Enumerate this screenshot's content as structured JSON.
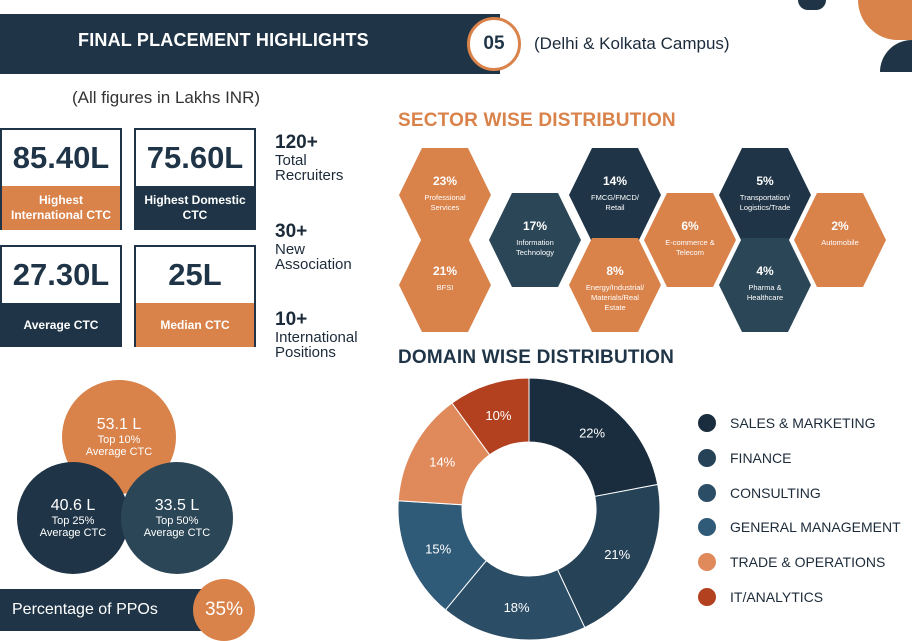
{
  "header": {
    "title": "FINAL PLACEMENT HIGHLIGHTS",
    "number": "05",
    "campus": "(Delhi & Kolkata Campus)"
  },
  "figures_note": "(All figures in Lakhs INR)",
  "stats": [
    {
      "value": "85.40L",
      "label": "Highest International CTC"
    },
    {
      "value": "75.60L",
      "label": "Highest Domestic CTC"
    },
    {
      "value": "27.30L",
      "label": "Average CTC"
    },
    {
      "value": "25L",
      "label": "Median CTC"
    }
  ],
  "side_stats": [
    {
      "value": "120+",
      "line1": "Total",
      "line2": "Recruiters"
    },
    {
      "value": "30+",
      "line1": "New",
      "line2": "Association"
    },
    {
      "value": "10+",
      "line1": "International",
      "line2": "Positions"
    }
  ],
  "percentile_ctc": [
    {
      "value": "53.1 L",
      "line1": "Top 10%",
      "line2": "Average CTC"
    },
    {
      "value": "40.6 L",
      "line1": "Top 25%",
      "line2": "Average CTC"
    },
    {
      "value": "33.5 L",
      "line1": "Top 50%",
      "line2": "Average CTC"
    }
  ],
  "ppo": {
    "label": "Percentage of PPOs",
    "value": "35%"
  },
  "sector": {
    "title": "SECTOR WISE DISTRIBUTION",
    "items": [
      {
        "pct": "23%",
        "name": "Professional Services",
        "color": "#d9824a"
      },
      {
        "pct": "21%",
        "name": "BFSI",
        "color": "#d9824a"
      },
      {
        "pct": "17%",
        "name": "Information Technology",
        "color": "#2b4656"
      },
      {
        "pct": "14%",
        "name": "FMCG/FMCD/ Retail",
        "color": "#1f3547"
      },
      {
        "pct": "8%",
        "name": "Energy/Industrial/ Materials/Real Estate",
        "color": "#d9824a"
      },
      {
        "pct": "6%",
        "name": "E-commerce & Telecom",
        "color": "#d9824a"
      },
      {
        "pct": "5%",
        "name": "Transportation/ Logistics/Trade",
        "color": "#1f3547"
      },
      {
        "pct": "4%",
        "name": "Pharma & Healthcare",
        "color": "#2b4656"
      },
      {
        "pct": "2%",
        "name": "Automobile",
        "color": "#d9824a"
      }
    ]
  },
  "chart_data": {
    "type": "pie",
    "title": "DOMAIN WISE DISTRIBUTION",
    "categories": [
      "SALES & MARKETING",
      "FINANCE",
      "CONSULTING",
      "GENERAL MANAGEMENT",
      "TRADE & OPERATIONS",
      "IT/ANALYTICS"
    ],
    "values": [
      22,
      21,
      18,
      15,
      14,
      10
    ],
    "labels": [
      "22%",
      "21%",
      "18%",
      "15%",
      "14%",
      "10%"
    ],
    "colors": [
      "#1a2d3e",
      "#264257",
      "#2b4d66",
      "#2f5a78",
      "#e08a5c",
      "#b3401f"
    ],
    "donut": true,
    "legend": "right"
  }
}
